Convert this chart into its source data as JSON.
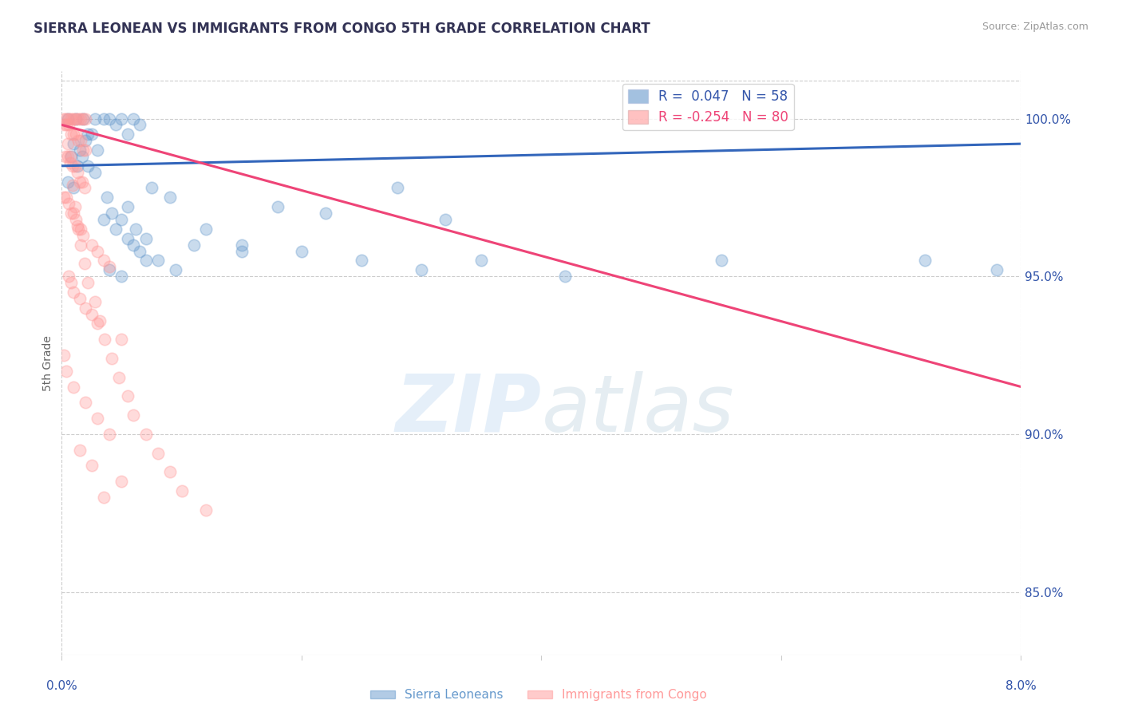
{
  "title": "SIERRA LEONEAN VS IMMIGRANTS FROM CONGO 5TH GRADE CORRELATION CHART",
  "source": "Source: ZipAtlas.com",
  "ylabel": "5th Grade",
  "xmin": 0.0,
  "xmax": 8.0,
  "ymin": 83.0,
  "ymax": 101.5,
  "legend_r_blue": "0.047",
  "legend_n_blue": "58",
  "legend_r_pink": "-0.254",
  "legend_n_pink": "80",
  "blue_color": "#6699CC",
  "pink_color": "#FF9999",
  "line_blue_color": "#3366BB",
  "line_pink_color": "#EE4477",
  "watermark_zip": "ZIP",
  "watermark_atlas": "atlas",
  "blue_scatter": [
    [
      0.05,
      100.0
    ],
    [
      0.12,
      100.0
    ],
    [
      0.18,
      100.0
    ],
    [
      0.22,
      99.5
    ],
    [
      0.28,
      100.0
    ],
    [
      0.35,
      100.0
    ],
    [
      0.4,
      100.0
    ],
    [
      0.45,
      99.8
    ],
    [
      0.5,
      100.0
    ],
    [
      0.55,
      99.5
    ],
    [
      0.6,
      100.0
    ],
    [
      0.65,
      99.8
    ],
    [
      0.1,
      99.2
    ],
    [
      0.15,
      99.0
    ],
    [
      0.2,
      99.3
    ],
    [
      0.25,
      99.5
    ],
    [
      0.3,
      99.0
    ],
    [
      0.08,
      98.8
    ],
    [
      0.13,
      98.5
    ],
    [
      0.17,
      98.8
    ],
    [
      0.22,
      98.5
    ],
    [
      0.28,
      98.3
    ],
    [
      0.05,
      98.0
    ],
    [
      0.1,
      97.8
    ],
    [
      0.38,
      97.5
    ],
    [
      0.42,
      97.0
    ],
    [
      0.5,
      96.8
    ],
    [
      0.55,
      97.2
    ],
    [
      0.62,
      96.5
    ],
    [
      0.7,
      96.2
    ],
    [
      1.1,
      96.0
    ],
    [
      1.2,
      96.5
    ],
    [
      1.5,
      95.8
    ],
    [
      0.8,
      95.5
    ],
    [
      0.95,
      95.2
    ],
    [
      3.2,
      96.8
    ],
    [
      3.5,
      95.5
    ],
    [
      4.2,
      95.0
    ],
    [
      5.5,
      95.5
    ],
    [
      7.2,
      95.5
    ],
    [
      7.8,
      95.2
    ],
    [
      2.8,
      97.8
    ],
    [
      0.75,
      97.8
    ],
    [
      0.9,
      97.5
    ],
    [
      1.8,
      97.2
    ],
    [
      2.2,
      97.0
    ],
    [
      0.35,
      96.8
    ],
    [
      0.45,
      96.5
    ],
    [
      0.55,
      96.2
    ],
    [
      0.6,
      96.0
    ],
    [
      0.65,
      95.8
    ],
    [
      0.7,
      95.5
    ],
    [
      0.4,
      95.2
    ],
    [
      0.5,
      95.0
    ],
    [
      1.5,
      96.0
    ],
    [
      2.0,
      95.8
    ],
    [
      2.5,
      95.5
    ],
    [
      3.0,
      95.2
    ]
  ],
  "pink_scatter": [
    [
      0.02,
      100.0
    ],
    [
      0.04,
      100.0
    ],
    [
      0.06,
      100.0
    ],
    [
      0.08,
      100.0
    ],
    [
      0.1,
      100.0
    ],
    [
      0.12,
      100.0
    ],
    [
      0.14,
      100.0
    ],
    [
      0.16,
      100.0
    ],
    [
      0.18,
      100.0
    ],
    [
      0.2,
      100.0
    ],
    [
      0.02,
      99.8
    ],
    [
      0.04,
      99.8
    ],
    [
      0.06,
      99.8
    ],
    [
      0.08,
      99.5
    ],
    [
      0.1,
      99.5
    ],
    [
      0.12,
      99.5
    ],
    [
      0.14,
      99.3
    ],
    [
      0.16,
      99.3
    ],
    [
      0.18,
      99.0
    ],
    [
      0.2,
      99.0
    ],
    [
      0.03,
      98.8
    ],
    [
      0.05,
      98.8
    ],
    [
      0.07,
      98.8
    ],
    [
      0.09,
      98.5
    ],
    [
      0.11,
      98.5
    ],
    [
      0.13,
      98.3
    ],
    [
      0.15,
      98.0
    ],
    [
      0.17,
      98.0
    ],
    [
      0.19,
      97.8
    ],
    [
      0.02,
      97.5
    ],
    [
      0.04,
      97.5
    ],
    [
      0.06,
      97.3
    ],
    [
      0.08,
      97.0
    ],
    [
      0.1,
      97.0
    ],
    [
      0.12,
      96.8
    ],
    [
      0.14,
      96.5
    ],
    [
      0.16,
      96.5
    ],
    [
      0.18,
      96.3
    ],
    [
      0.25,
      96.0
    ],
    [
      0.3,
      95.8
    ],
    [
      0.35,
      95.5
    ],
    [
      0.4,
      95.3
    ],
    [
      0.06,
      95.0
    ],
    [
      0.08,
      94.8
    ],
    [
      0.1,
      94.5
    ],
    [
      0.15,
      94.3
    ],
    [
      0.2,
      94.0
    ],
    [
      0.25,
      93.8
    ],
    [
      0.3,
      93.5
    ],
    [
      0.5,
      93.0
    ],
    [
      0.02,
      92.5
    ],
    [
      0.04,
      92.0
    ],
    [
      0.1,
      91.5
    ],
    [
      0.2,
      91.0
    ],
    [
      0.3,
      90.5
    ],
    [
      0.4,
      90.0
    ],
    [
      0.15,
      89.5
    ],
    [
      0.25,
      89.0
    ],
    [
      0.5,
      88.5
    ],
    [
      0.35,
      88.0
    ],
    [
      0.05,
      99.2
    ],
    [
      0.07,
      98.6
    ],
    [
      0.09,
      97.9
    ],
    [
      0.11,
      97.2
    ],
    [
      0.13,
      96.6
    ],
    [
      0.16,
      96.0
    ],
    [
      0.19,
      95.4
    ],
    [
      0.22,
      94.8
    ],
    [
      0.28,
      94.2
    ],
    [
      0.32,
      93.6
    ],
    [
      0.36,
      93.0
    ],
    [
      0.42,
      92.4
    ],
    [
      0.48,
      91.8
    ],
    [
      0.55,
      91.2
    ],
    [
      0.6,
      90.6
    ],
    [
      0.7,
      90.0
    ],
    [
      0.8,
      89.4
    ],
    [
      0.9,
      88.8
    ],
    [
      1.0,
      88.2
    ],
    [
      1.2,
      87.6
    ]
  ],
  "blue_line_x": [
    0.0,
    8.0
  ],
  "blue_line_y": [
    98.5,
    99.2
  ],
  "pink_line_x": [
    0.0,
    8.0
  ],
  "pink_line_y": [
    99.8,
    91.5
  ],
  "axis_color": "#3355AA",
  "grid_color": "#CCCCCC",
  "title_color": "#333355"
}
